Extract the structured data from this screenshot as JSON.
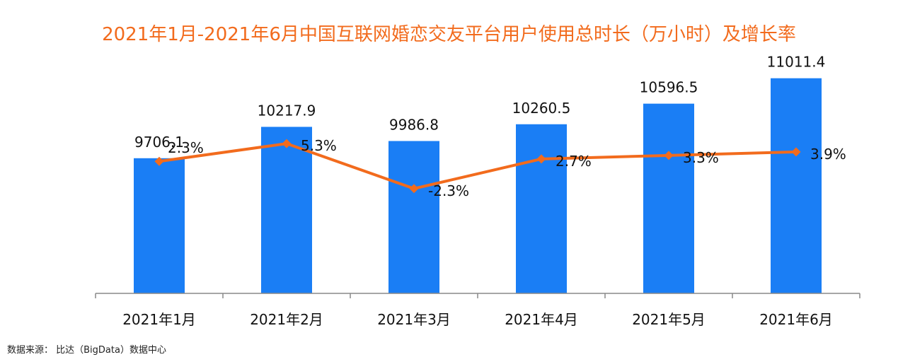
{
  "chart_data": {
    "type": "bar",
    "title": "2021年1月-2021年6月中国互联网婚恋交友平台用户使用总时长（万小时）及增长率",
    "categories": [
      "2021年1月",
      "2021年2月",
      "2021年3月",
      "2021年4月",
      "2021年5月",
      "2021年6月"
    ],
    "series": [
      {
        "type": "bar",
        "values": [
          9706.1,
          10217.9,
          9986.8,
          10260.5,
          10596.5,
          11011.4
        ],
        "value_labels": [
          "9706.1",
          "10217.9",
          "9986.8",
          "10260.5",
          "10596.5",
          "11011.4"
        ],
        "color": "#1a7ef5"
      },
      {
        "type": "line",
        "values": [
          2.3,
          5.3,
          -2.3,
          2.7,
          3.3,
          3.9
        ],
        "value_labels": [
          "2.3%",
          "5.3%",
          "-2.3%",
          "2.7%",
          "3.3%",
          "3.9%"
        ],
        "color": "#f26b1d"
      }
    ],
    "bar_ylim": [
      7500,
      11100
    ],
    "line_ylim": [
      -20,
      20
    ],
    "grid": false,
    "legend": "none"
  },
  "source": "数据来源： 比达（BigData）数据中心"
}
